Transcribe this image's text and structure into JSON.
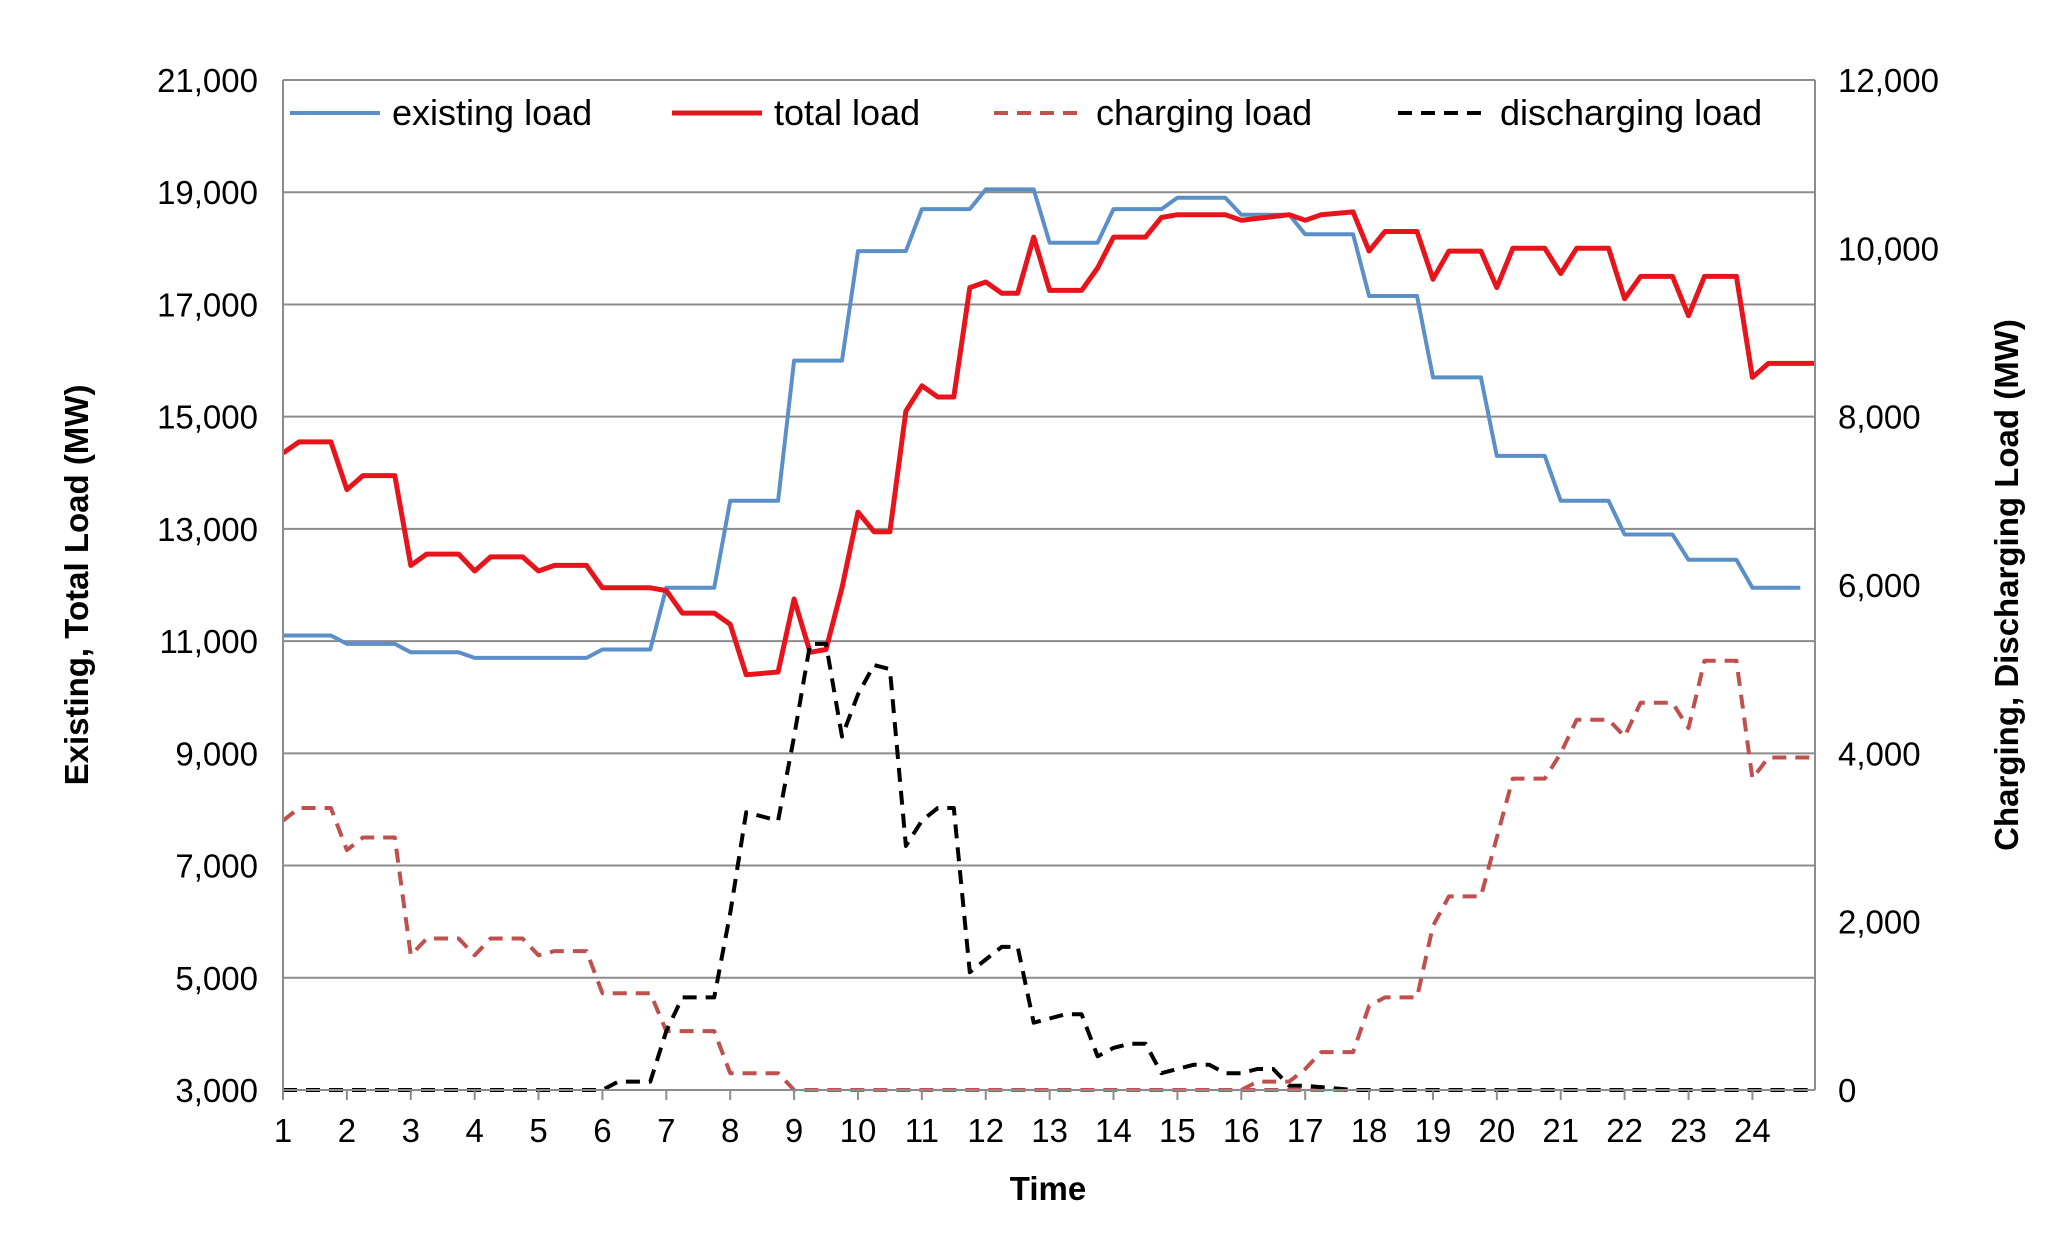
{
  "chart_data": {
    "type": "line",
    "title": "",
    "xlabel": "Time",
    "ylabel_left": "Existing, Total Load (MW)",
    "ylabel_right": "Charging, Discharging Load (MW)",
    "x_ticks": [
      "1",
      "2",
      "3",
      "4",
      "5",
      "6",
      "7",
      "8",
      "9",
      "10",
      "11",
      "12",
      "13",
      "14",
      "15",
      "16",
      "17",
      "18",
      "19",
      "20",
      "21",
      "22",
      "23",
      "24"
    ],
    "x_domain": [
      1,
      24.98
    ],
    "ylim_left": [
      3000,
      21000
    ],
    "ylim_right": [
      0,
      12000
    ],
    "yticks_left": [
      "21,000",
      "19,000",
      "17,000",
      "15,000",
      "13,000",
      "11,000",
      "9,000",
      "7,000",
      "5,000",
      "3,000"
    ],
    "yticks_left_values": [
      21000,
      19000,
      17000,
      15000,
      13000,
      11000,
      9000,
      7000,
      5000,
      3000
    ],
    "yticks_right": [
      "12,000",
      "10,000",
      "8,000",
      "6,000",
      "4,000",
      "2,000",
      "0"
    ],
    "yticks_right_values": [
      12000,
      10000,
      8000,
      6000,
      4000,
      2000,
      0
    ],
    "grid": "horizontal",
    "legend_position": "top",
    "series": [
      {
        "name": "existing load",
        "axis": "left",
        "color": "#5b8fc7",
        "dash": "solid",
        "points": [
          [
            1,
            11100
          ],
          [
            1.75,
            11100
          ],
          [
            2,
            10950
          ],
          [
            2.75,
            10950
          ],
          [
            3,
            10800
          ],
          [
            3.75,
            10800
          ],
          [
            4,
            10700
          ],
          [
            5.75,
            10700
          ],
          [
            6,
            10850
          ],
          [
            6.75,
            10850
          ],
          [
            7,
            11950
          ],
          [
            7.75,
            11950
          ],
          [
            8,
            13500
          ],
          [
            8.75,
            13500
          ],
          [
            9,
            16000
          ],
          [
            9.75,
            16000
          ],
          [
            10,
            17950
          ],
          [
            10.75,
            17950
          ],
          [
            11,
            18700
          ],
          [
            11.75,
            18700
          ],
          [
            12,
            19050
          ],
          [
            12.75,
            19050
          ],
          [
            13,
            18100
          ],
          [
            13.75,
            18100
          ],
          [
            14,
            18700
          ],
          [
            14.75,
            18700
          ],
          [
            15,
            18900
          ],
          [
            15.75,
            18900
          ],
          [
            16,
            18600
          ],
          [
            16.75,
            18600
          ],
          [
            17,
            18250
          ],
          [
            17.75,
            18250
          ],
          [
            18,
            17150
          ],
          [
            18.75,
            17150
          ],
          [
            19,
            15700
          ],
          [
            19.75,
            15700
          ],
          [
            20,
            14300
          ],
          [
            20.75,
            14300
          ],
          [
            21,
            13500
          ],
          [
            21.75,
            13500
          ],
          [
            22,
            12900
          ],
          [
            22.75,
            12900
          ],
          [
            23,
            12450
          ],
          [
            23.75,
            12450
          ],
          [
            24,
            11950
          ],
          [
            24.75,
            11950
          ]
        ]
      },
      {
        "name": "total load",
        "axis": "left",
        "color": "#e8141c",
        "dash": "solid",
        "points": [
          [
            1,
            14350
          ],
          [
            1.25,
            14550
          ],
          [
            1.75,
            14550
          ],
          [
            2,
            13700
          ],
          [
            2.25,
            13950
          ],
          [
            2.75,
            13950
          ],
          [
            3,
            12350
          ],
          [
            3.25,
            12550
          ],
          [
            3.75,
            12550
          ],
          [
            4,
            12250
          ],
          [
            4.25,
            12500
          ],
          [
            4.75,
            12500
          ],
          [
            5,
            12250
          ],
          [
            5.25,
            12350
          ],
          [
            5.75,
            12350
          ],
          [
            6,
            11950
          ],
          [
            6.75,
            11950
          ],
          [
            7,
            11900
          ],
          [
            7.25,
            11500
          ],
          [
            7.75,
            11500
          ],
          [
            8,
            11300
          ],
          [
            8.25,
            10400
          ],
          [
            8.75,
            10450
          ],
          [
            9,
            11750
          ],
          [
            9.25,
            10800
          ],
          [
            9.5,
            10850
          ],
          [
            9.75,
            11950
          ],
          [
            10,
            13300
          ],
          [
            10.25,
            12950
          ],
          [
            10.5,
            12950
          ],
          [
            10.75,
            15100
          ],
          [
            11,
            15550
          ],
          [
            11.25,
            15350
          ],
          [
            11.5,
            15350
          ],
          [
            11.75,
            17300
          ],
          [
            12,
            17400
          ],
          [
            12.25,
            17200
          ],
          [
            12.5,
            17200
          ],
          [
            12.75,
            18200
          ],
          [
            13,
            17250
          ],
          [
            13.25,
            17250
          ],
          [
            13.5,
            17250
          ],
          [
            13.75,
            17650
          ],
          [
            14,
            18200
          ],
          [
            14.25,
            18200
          ],
          [
            14.5,
            18200
          ],
          [
            14.75,
            18550
          ],
          [
            15,
            18600
          ],
          [
            15.75,
            18600
          ],
          [
            16,
            18500
          ],
          [
            16.75,
            18600
          ],
          [
            17,
            18500
          ],
          [
            17.25,
            18600
          ],
          [
            17.75,
            18650
          ],
          [
            18,
            17950
          ],
          [
            18.25,
            18300
          ],
          [
            18.75,
            18300
          ],
          [
            19,
            17450
          ],
          [
            19.25,
            17950
          ],
          [
            19.75,
            17950
          ],
          [
            20,
            17300
          ],
          [
            20.25,
            18000
          ],
          [
            20.75,
            18000
          ],
          [
            21,
            17550
          ],
          [
            21.25,
            18000
          ],
          [
            21.75,
            18000
          ],
          [
            22,
            17100
          ],
          [
            22.25,
            17500
          ],
          [
            22.75,
            17500
          ],
          [
            23,
            16800
          ],
          [
            23.25,
            17500
          ],
          [
            23.75,
            17500
          ],
          [
            24,
            15700
          ],
          [
            24.25,
            15950
          ],
          [
            24.98,
            15950
          ]
        ]
      },
      {
        "name": "charging load",
        "axis": "right",
        "color": "#c0504d",
        "dash": "dashed",
        "points": [
          [
            1,
            3200
          ],
          [
            1.25,
            3350
          ],
          [
            1.75,
            3350
          ],
          [
            2,
            2850
          ],
          [
            2.25,
            3000
          ],
          [
            2.75,
            3000
          ],
          [
            3,
            1600
          ],
          [
            3.25,
            1800
          ],
          [
            3.75,
            1800
          ],
          [
            4,
            1600
          ],
          [
            4.25,
            1800
          ],
          [
            4.75,
            1800
          ],
          [
            5,
            1600
          ],
          [
            5.25,
            1650
          ],
          [
            5.75,
            1650
          ],
          [
            6,
            1150
          ],
          [
            6.75,
            1150
          ],
          [
            7,
            700
          ],
          [
            7.75,
            700
          ],
          [
            8,
            200
          ],
          [
            8.75,
            200
          ],
          [
            9,
            0
          ],
          [
            24.98,
            0
          ]
        ],
        "points_late": [
          [
            16,
            0
          ],
          [
            16.25,
            100
          ],
          [
            16.75,
            100
          ],
          [
            17,
            250
          ],
          [
            17.25,
            450
          ],
          [
            17.75,
            450
          ],
          [
            18,
            1000
          ],
          [
            18.25,
            1100
          ],
          [
            18.75,
            1100
          ],
          [
            19,
            1950
          ],
          [
            19.25,
            2300
          ],
          [
            19.75,
            2300
          ],
          [
            20,
            3000
          ],
          [
            20.25,
            3700
          ],
          [
            20.75,
            3700
          ],
          [
            21,
            4000
          ],
          [
            21.25,
            4400
          ],
          [
            21.75,
            4400
          ],
          [
            22,
            4200
          ],
          [
            22.25,
            4600
          ],
          [
            22.75,
            4600
          ],
          [
            23,
            4300
          ],
          [
            23.25,
            5100
          ],
          [
            23.75,
            5100
          ],
          [
            24,
            3700
          ],
          [
            24.25,
            3950
          ],
          [
            24.98,
            3950
          ]
        ]
      },
      {
        "name": "discharging load",
        "axis": "right",
        "color": "#000000",
        "dash": "dashed",
        "points": [
          [
            1,
            0
          ],
          [
            6,
            0
          ],
          [
            6.25,
            100
          ],
          [
            6.75,
            100
          ],
          [
            7,
            700
          ],
          [
            7.25,
            1100
          ],
          [
            7.75,
            1100
          ],
          [
            8,
            2100
          ],
          [
            8.25,
            3300
          ],
          [
            8.75,
            3200
          ],
          [
            9,
            4200
          ],
          [
            9.25,
            5300
          ],
          [
            9.5,
            5300
          ],
          [
            9.75,
            4200
          ],
          [
            10,
            4700
          ],
          [
            10.25,
            5050
          ],
          [
            10.5,
            5000
          ],
          [
            10.75,
            2900
          ],
          [
            11,
            3200
          ],
          [
            11.25,
            3350
          ],
          [
            11.5,
            3350
          ],
          [
            11.75,
            1400
          ],
          [
            12,
            1550
          ],
          [
            12.25,
            1700
          ],
          [
            12.5,
            1700
          ],
          [
            12.75,
            800
          ],
          [
            13,
            850
          ],
          [
            13.25,
            900
          ],
          [
            13.5,
            900
          ],
          [
            13.75,
            400
          ],
          [
            14,
            500
          ],
          [
            14.25,
            550
          ],
          [
            14.5,
            550
          ],
          [
            14.75,
            200
          ],
          [
            15,
            250
          ],
          [
            15.25,
            300
          ],
          [
            15.5,
            300
          ],
          [
            15.75,
            200
          ],
          [
            16,
            200
          ],
          [
            16.25,
            250
          ],
          [
            16.5,
            250
          ],
          [
            16.75,
            50
          ],
          [
            17,
            50
          ],
          [
            17.75,
            0
          ],
          [
            24.98,
            0
          ]
        ]
      }
    ]
  }
}
